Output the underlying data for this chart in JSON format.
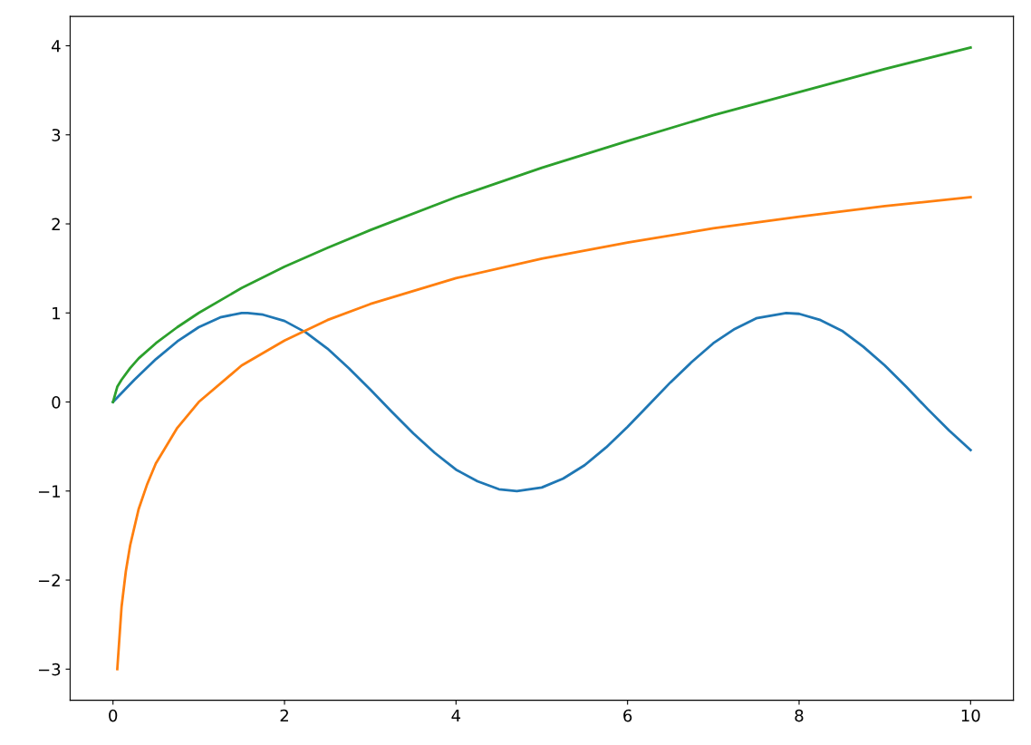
{
  "chart_data": {
    "type": "line",
    "xlim": [
      -0.5,
      10.5
    ],
    "xticks": [
      0,
      2,
      4,
      6,
      8,
      10
    ],
    "ylim": [
      -3.35,
      4.33
    ],
    "yticks": [
      {
        "value": -3,
        "label": "−3"
      },
      {
        "value": -2,
        "label": "−2"
      },
      {
        "value": -1,
        "label": "−1"
      },
      0,
      1,
      2,
      3,
      4
    ],
    "grid": false,
    "series": [
      {
        "color": "#1f77b4",
        "x": [
          0,
          0.25,
          0.5,
          0.75,
          1,
          1.25,
          1.5,
          1.57,
          1.75,
          2,
          2.25,
          2.5,
          2.75,
          3,
          3.25,
          3.5,
          3.75,
          4,
          4.25,
          4.5,
          4.71,
          5,
          5.25,
          5.5,
          5.75,
          6,
          6.25,
          6.5,
          6.75,
          7,
          7.25,
          7.5,
          7.85,
          8,
          8.25,
          8.5,
          8.75,
          9,
          9.25,
          9.5,
          9.75,
          10
        ],
        "values": [
          0,
          0.25,
          0.48,
          0.68,
          0.84,
          0.95,
          1.0,
          1.0,
          0.98,
          0.91,
          0.78,
          0.6,
          0.38,
          0.14,
          -0.11,
          -0.35,
          -0.57,
          -0.76,
          -0.89,
          -0.98,
          -1.0,
          -0.96,
          -0.86,
          -0.71,
          -0.51,
          -0.28,
          -0.03,
          0.22,
          0.45,
          0.66,
          0.82,
          0.94,
          1.0,
          0.99,
          0.92,
          0.8,
          0.62,
          0.41,
          0.17,
          -0.08,
          -0.32,
          -0.54
        ]
      },
      {
        "color": "#ff7f0e",
        "x": [
          0.05,
          0.1,
          0.15,
          0.2,
          0.3,
          0.4,
          0.5,
          0.75,
          1,
          1.5,
          2,
          2.5,
          3,
          4,
          5,
          6,
          7,
          8,
          9,
          10
        ],
        "values": [
          -3.0,
          -2.3,
          -1.9,
          -1.61,
          -1.2,
          -0.92,
          -0.69,
          -0.29,
          0,
          0.41,
          0.69,
          0.92,
          1.1,
          1.39,
          1.61,
          1.79,
          1.95,
          2.08,
          2.2,
          2.3
        ]
      },
      {
        "color": "#2ca02c",
        "x": [
          0,
          0.05,
          0.1,
          0.2,
          0.3,
          0.5,
          0.75,
          1,
          1.5,
          2,
          2.5,
          3,
          4,
          5,
          6,
          7,
          8,
          9,
          10
        ],
        "values": [
          0,
          0.17,
          0.25,
          0.38,
          0.49,
          0.66,
          0.84,
          1.0,
          1.28,
          1.52,
          1.73,
          1.93,
          2.3,
          2.63,
          2.93,
          3.22,
          3.48,
          3.74,
          3.98
        ]
      }
    ]
  }
}
